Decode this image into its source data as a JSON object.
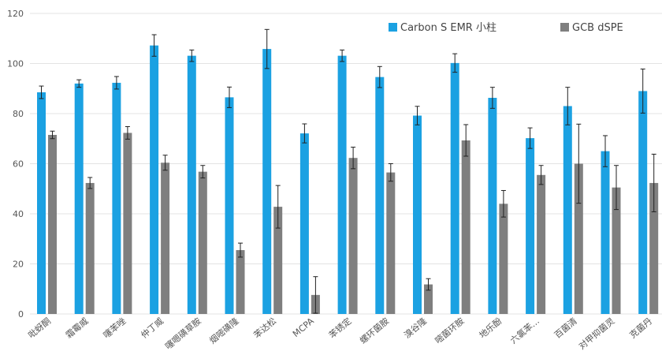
{
  "chart_data": {
    "type": "bar",
    "categories": [
      "吡蚜酮",
      "霜霉威",
      "噻苯唑",
      "仲丁威",
      "噻嗯磺草胺",
      "烟嘧磺隆",
      "苯达松",
      "MCPA",
      "苯锈定",
      "螺环菌胺",
      "溴谷隆",
      "嘧菌环胺",
      "地乐酚",
      "六氯苯…",
      "百菌清",
      "对甲抑菌灵",
      "克菌丹"
    ],
    "series": [
      {
        "name": "Carbon S EMR 小柱",
        "color": "#1ba1e2",
        "values": [
          88.5,
          92,
          92.3,
          107.2,
          103.1,
          86.5,
          105.8,
          72.1,
          103.1,
          94.6,
          79.2,
          100.2,
          86.3,
          70.2,
          83,
          65,
          89
        ],
        "errors": [
          2.5,
          1.5,
          2.5,
          4.3,
          2.3,
          4.1,
          7.8,
          3.8,
          2.3,
          4.2,
          3.7,
          3.7,
          4.2,
          4.1,
          7.5,
          6.2,
          8.8
        ]
      },
      {
        "name": "GCB dSPE",
        "color": "#7f7f7f",
        "values": [
          71.5,
          52.3,
          72.3,
          60.4,
          56.8,
          25.5,
          42.8,
          7.6,
          62.3,
          56.5,
          11.8,
          69.3,
          44,
          55.5,
          60,
          50.5,
          52.3
        ],
        "errors": [
          1.5,
          2.2,
          2.5,
          3,
          2.5,
          2.8,
          8.5,
          7.3,
          4.3,
          3.5,
          2.3,
          6.3,
          5.3,
          3.8,
          15.8,
          8.8,
          11.5
        ]
      }
    ],
    "ylim": [
      0,
      120
    ],
    "yticks": [
      0,
      20,
      40,
      60,
      80,
      100,
      120
    ],
    "grid": true,
    "legend_position": "top-right",
    "xlabel": "",
    "ylabel": ""
  }
}
